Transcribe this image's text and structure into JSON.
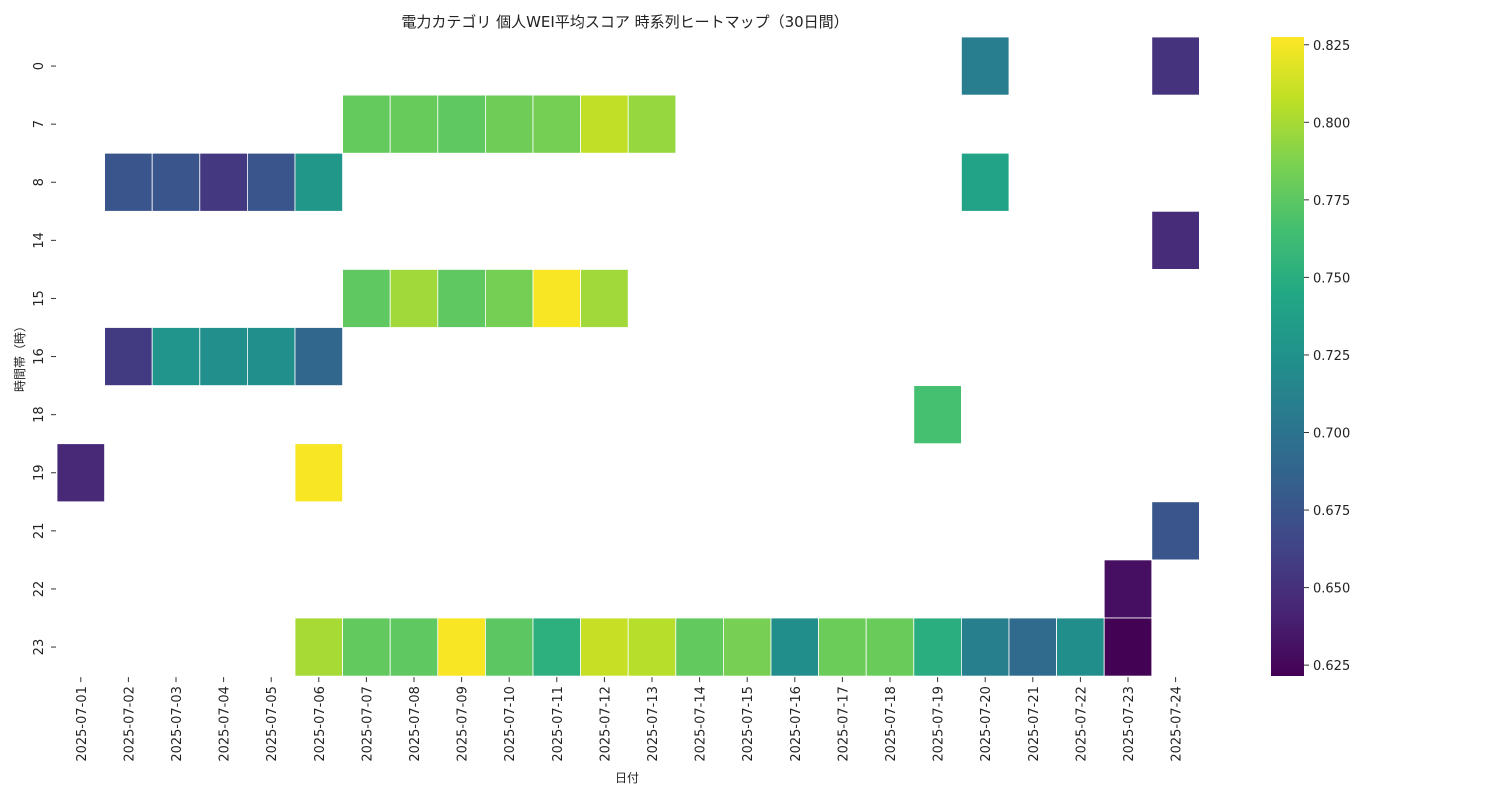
{
  "chart_data": {
    "type": "heatmap",
    "title": "電力カテゴリ 個人WEI平均スコア 時系列ヒートマップ（30日間）",
    "xlabel": "日付",
    "ylabel": "時間帯（時）",
    "x": [
      "2025-07-01",
      "2025-07-02",
      "2025-07-03",
      "2025-07-04",
      "2025-07-05",
      "2025-07-06",
      "2025-07-07",
      "2025-07-08",
      "2025-07-09",
      "2025-07-10",
      "2025-07-11",
      "2025-07-12",
      "2025-07-13",
      "2025-07-14",
      "2025-07-15",
      "2025-07-16",
      "2025-07-17",
      "2025-07-18",
      "2025-07-19",
      "2025-07-20",
      "2025-07-21",
      "2025-07-22",
      "2025-07-23",
      "2025-07-24"
    ],
    "y": [
      "0",
      "7",
      "8",
      "14",
      "15",
      "16",
      "18",
      "19",
      "21",
      "22",
      "23"
    ],
    "values": [
      [
        null,
        null,
        null,
        null,
        null,
        null,
        null,
        null,
        null,
        null,
        null,
        null,
        null,
        null,
        null,
        null,
        null,
        null,
        null,
        0.708,
        null,
        null,
        null,
        0.652
      ],
      [
        null,
        null,
        null,
        null,
        null,
        null,
        0.778,
        0.779,
        0.776,
        0.782,
        0.784,
        0.808,
        0.795,
        null,
        null,
        null,
        null,
        null,
        null,
        null,
        null,
        null,
        null,
        null
      ],
      [
        null,
        0.676,
        0.676,
        0.655,
        0.676,
        0.73,
        null,
        null,
        null,
        null,
        null,
        null,
        null,
        null,
        null,
        null,
        null,
        null,
        null,
        0.74,
        null,
        null,
        null,
        null
      ],
      [
        null,
        null,
        null,
        null,
        null,
        null,
        null,
        null,
        null,
        null,
        null,
        null,
        null,
        null,
        null,
        null,
        null,
        null,
        null,
        null,
        null,
        null,
        null,
        0.647
      ],
      [
        null,
        null,
        null,
        null,
        null,
        null,
        0.776,
        0.798,
        0.776,
        0.784,
        0.826,
        0.798,
        null,
        null,
        null,
        null,
        null,
        null,
        null,
        null,
        null,
        null,
        null,
        null
      ],
      [
        null,
        0.657,
        0.727,
        0.723,
        0.724,
        0.69,
        null,
        null,
        null,
        null,
        null,
        null,
        null,
        null,
        null,
        null,
        null,
        null,
        null,
        null,
        null,
        null,
        null,
        null
      ],
      [
        null,
        null,
        null,
        null,
        null,
        null,
        null,
        null,
        null,
        null,
        null,
        null,
        null,
        null,
        null,
        null,
        null,
        null,
        0.766,
        null,
        null,
        null,
        null,
        null
      ],
      [
        0.645,
        null,
        null,
        null,
        null,
        0.826,
        null,
        null,
        null,
        null,
        null,
        null,
        null,
        null,
        null,
        null,
        null,
        null,
        null,
        null,
        null,
        null,
        null,
        null
      ],
      [
        null,
        null,
        null,
        null,
        null,
        null,
        null,
        null,
        null,
        null,
        null,
        null,
        null,
        null,
        null,
        null,
        null,
        null,
        null,
        null,
        null,
        null,
        null,
        0.676
      ],
      [
        null,
        null,
        null,
        null,
        null,
        null,
        null,
        null,
        null,
        null,
        null,
        null,
        null,
        null,
        null,
        null,
        null,
        null,
        null,
        null,
        null,
        null,
        0.63,
        null
      ],
      [
        null,
        null,
        null,
        null,
        null,
        0.8,
        0.777,
        0.776,
        0.826,
        0.775,
        0.752,
        0.81,
        0.805,
        0.777,
        0.785,
        0.722,
        0.781,
        0.78,
        0.75,
        0.71,
        0.692,
        0.722,
        0.622,
        null
      ]
    ],
    "colorbar": {
      "colormap": "viridis",
      "min": 0.6215,
      "max": 0.8275,
      "ticks": [
        "0.625",
        "0.650",
        "0.675",
        "0.700",
        "0.725",
        "0.750",
        "0.775",
        "0.800",
        "0.825"
      ]
    },
    "grid": false
  }
}
